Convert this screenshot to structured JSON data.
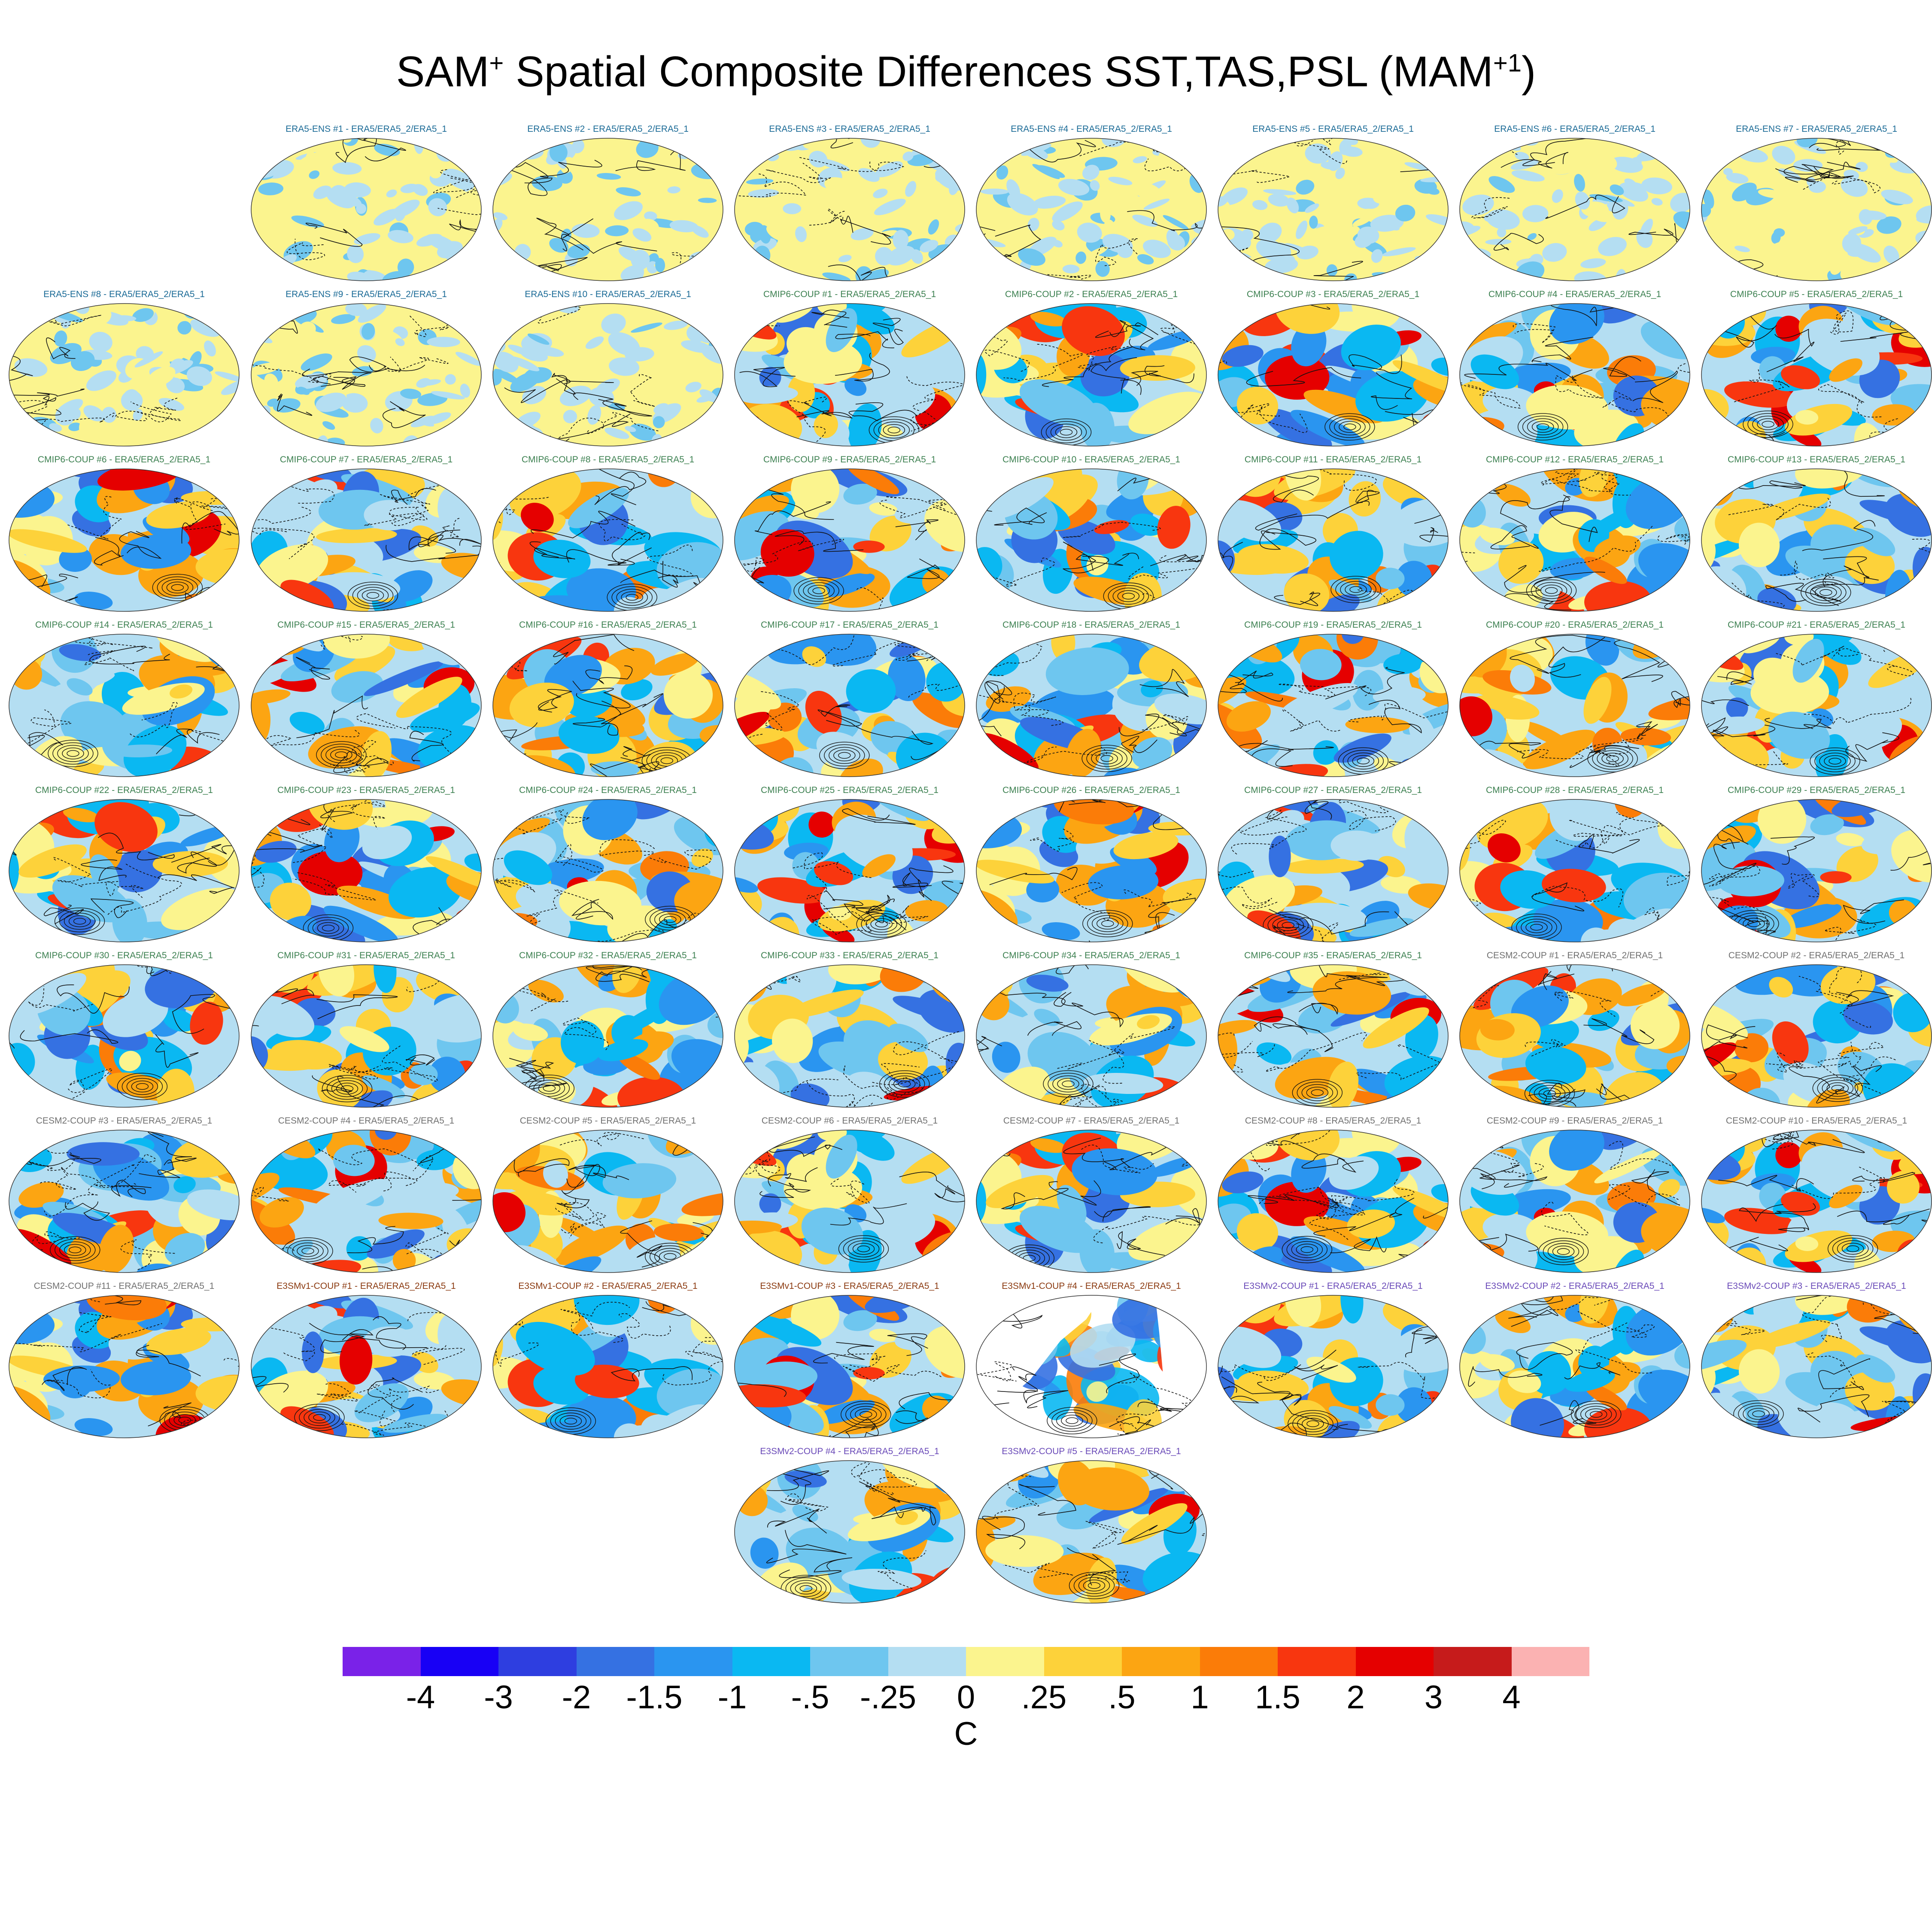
{
  "figure": {
    "title_main": "SAM",
    "title_sup1": "+",
    "title_mid": " Spatial Composite Differences SST,TAS,PSL (MAM",
    "title_sup2": "+1",
    "title_end": ")"
  },
  "chart_data": {
    "type": "heatmap",
    "title": "SAM+ Spatial Composite Differences SST,TAS,PSL (MAM+1)",
    "projection": "Robinson global maps, filled contours with line contours overlaid",
    "panels": [
      {
        "label": "ERA5-ENS   #1 - ERA5/ERA5_2/ERA5_1",
        "group": "ERA5-ENS"
      },
      {
        "label": "ERA5-ENS   #2 - ERA5/ERA5_2/ERA5_1",
        "group": "ERA5-ENS"
      },
      {
        "label": "ERA5-ENS   #3 - ERA5/ERA5_2/ERA5_1",
        "group": "ERA5-ENS"
      },
      {
        "label": "ERA5-ENS   #4 - ERA5/ERA5_2/ERA5_1",
        "group": "ERA5-ENS"
      },
      {
        "label": "ERA5-ENS   #5 - ERA5/ERA5_2/ERA5_1",
        "group": "ERA5-ENS"
      },
      {
        "label": "ERA5-ENS   #6 - ERA5/ERA5_2/ERA5_1",
        "group": "ERA5-ENS"
      },
      {
        "label": "ERA5-ENS   #7 - ERA5/ERA5_2/ERA5_1",
        "group": "ERA5-ENS"
      },
      {
        "label": "ERA5-ENS   #8 - ERA5/ERA5_2/ERA5_1",
        "group": "ERA5-ENS"
      },
      {
        "label": "ERA5-ENS   #9 - ERA5/ERA5_2/ERA5_1",
        "group": "ERA5-ENS"
      },
      {
        "label": "ERA5-ENS   #10 - ERA5/ERA5_2/ERA5_1",
        "group": "ERA5-ENS"
      },
      {
        "label": "CMIP6-COUP  #1 - ERA5/ERA5_2/ERA5_1",
        "group": "CMIP6-COUP"
      },
      {
        "label": "CMIP6-COUP  #2 - ERA5/ERA5_2/ERA5_1",
        "group": "CMIP6-COUP"
      },
      {
        "label": "CMIP6-COUP  #3 - ERA5/ERA5_2/ERA5_1",
        "group": "CMIP6-COUP"
      },
      {
        "label": "CMIP6-COUP  #4 - ERA5/ERA5_2/ERA5_1",
        "group": "CMIP6-COUP"
      },
      {
        "label": "CMIP6-COUP  #5 - ERA5/ERA5_2/ERA5_1",
        "group": "CMIP6-COUP"
      },
      {
        "label": "CMIP6-COUP  #6 - ERA5/ERA5_2/ERA5_1",
        "group": "CMIP6-COUP"
      },
      {
        "label": "CMIP6-COUP  #7 - ERA5/ERA5_2/ERA5_1",
        "group": "CMIP6-COUP"
      },
      {
        "label": "CMIP6-COUP  #8 - ERA5/ERA5_2/ERA5_1",
        "group": "CMIP6-COUP"
      },
      {
        "label": "CMIP6-COUP  #9 - ERA5/ERA5_2/ERA5_1",
        "group": "CMIP6-COUP"
      },
      {
        "label": "CMIP6-COUP  #10 - ERA5/ERA5_2/ERA5_1",
        "group": "CMIP6-COUP"
      },
      {
        "label": "CMIP6-COUP  #11 - ERA5/ERA5_2/ERA5_1",
        "group": "CMIP6-COUP"
      },
      {
        "label": "CMIP6-COUP  #12 - ERA5/ERA5_2/ERA5_1",
        "group": "CMIP6-COUP"
      },
      {
        "label": "CMIP6-COUP  #13 - ERA5/ERA5_2/ERA5_1",
        "group": "CMIP6-COUP"
      },
      {
        "label": "CMIP6-COUP  #14 - ERA5/ERA5_2/ERA5_1",
        "group": "CMIP6-COUP"
      },
      {
        "label": "CMIP6-COUP  #15 - ERA5/ERA5_2/ERA5_1",
        "group": "CMIP6-COUP"
      },
      {
        "label": "CMIP6-COUP  #16 - ERA5/ERA5_2/ERA5_1",
        "group": "CMIP6-COUP"
      },
      {
        "label": "CMIP6-COUP  #17 - ERA5/ERA5_2/ERA5_1",
        "group": "CMIP6-COUP"
      },
      {
        "label": "CMIP6-COUP  #18 - ERA5/ERA5_2/ERA5_1",
        "group": "CMIP6-COUP"
      },
      {
        "label": "CMIP6-COUP  #19 - ERA5/ERA5_2/ERA5_1",
        "group": "CMIP6-COUP"
      },
      {
        "label": "CMIP6-COUP  #20 - ERA5/ERA5_2/ERA5_1",
        "group": "CMIP6-COUP"
      },
      {
        "label": "CMIP6-COUP  #21 - ERA5/ERA5_2/ERA5_1",
        "group": "CMIP6-COUP"
      },
      {
        "label": "CMIP6-COUP  #22 - ERA5/ERA5_2/ERA5_1",
        "group": "CMIP6-COUP"
      },
      {
        "label": "CMIP6-COUP  #23 - ERA5/ERA5_2/ERA5_1",
        "group": "CMIP6-COUP"
      },
      {
        "label": "CMIP6-COUP  #24 - ERA5/ERA5_2/ERA5_1",
        "group": "CMIP6-COUP"
      },
      {
        "label": "CMIP6-COUP  #25 - ERA5/ERA5_2/ERA5_1",
        "group": "CMIP6-COUP"
      },
      {
        "label": "CMIP6-COUP  #26 - ERA5/ERA5_2/ERA5_1",
        "group": "CMIP6-COUP"
      },
      {
        "label": "CMIP6-COUP  #27 - ERA5/ERA5_2/ERA5_1",
        "group": "CMIP6-COUP"
      },
      {
        "label": "CMIP6-COUP  #28 - ERA5/ERA5_2/ERA5_1",
        "group": "CMIP6-COUP"
      },
      {
        "label": "CMIP6-COUP  #29 - ERA5/ERA5_2/ERA5_1",
        "group": "CMIP6-COUP"
      },
      {
        "label": "CMIP6-COUP  #30 - ERA5/ERA5_2/ERA5_1",
        "group": "CMIP6-COUP"
      },
      {
        "label": "CMIP6-COUP  #31 - ERA5/ERA5_2/ERA5_1",
        "group": "CMIP6-COUP"
      },
      {
        "label": "CMIP6-COUP  #32 - ERA5/ERA5_2/ERA5_1",
        "group": "CMIP6-COUP"
      },
      {
        "label": "CMIP6-COUP  #33 - ERA5/ERA5_2/ERA5_1",
        "group": "CMIP6-COUP"
      },
      {
        "label": "CMIP6-COUP  #34 - ERA5/ERA5_2/ERA5_1",
        "group": "CMIP6-COUP"
      },
      {
        "label": "CMIP6-COUP  #35 - ERA5/ERA5_2/ERA5_1",
        "group": "CMIP6-COUP"
      },
      {
        "label": "CESM2-COUP  #1 - ERA5/ERA5_2/ERA5_1",
        "group": "CESM2-COUP"
      },
      {
        "label": "CESM2-COUP  #2 - ERA5/ERA5_2/ERA5_1",
        "group": "CESM2-COUP"
      },
      {
        "label": "CESM2-COUP  #3 - ERA5/ERA5_2/ERA5_1",
        "group": "CESM2-COUP"
      },
      {
        "label": "CESM2-COUP  #4 - ERA5/ERA5_2/ERA5_1",
        "group": "CESM2-COUP"
      },
      {
        "label": "CESM2-COUP  #5 - ERA5/ERA5_2/ERA5_1",
        "group": "CESM2-COUP"
      },
      {
        "label": "CESM2-COUP  #6 - ERA5/ERA5_2/ERA5_1",
        "group": "CESM2-COUP"
      },
      {
        "label": "CESM2-COUP  #7 - ERA5/ERA5_2/ERA5_1",
        "group": "CESM2-COUP"
      },
      {
        "label": "CESM2-COUP  #8 - ERA5/ERA5_2/ERA5_1",
        "group": "CESM2-COUP"
      },
      {
        "label": "CESM2-COUP  #9 - ERA5/ERA5_2/ERA5_1",
        "group": "CESM2-COUP"
      },
      {
        "label": "CESM2-COUP  #10 - ERA5/ERA5_2/ERA5_1",
        "group": "CESM2-COUP"
      },
      {
        "label": "CESM2-COUP  #11 - ERA5/ERA5_2/ERA5_1",
        "group": "CESM2-COUP"
      },
      {
        "label": "E3SMv1-COUP  #1 - ERA5/ERA5_2/ERA5_1",
        "group": "E3SMv1-COUP"
      },
      {
        "label": "E3SMv1-COUP  #2 - ERA5/ERA5_2/ERA5_1",
        "group": "E3SMv1-COUP"
      },
      {
        "label": "E3SMv1-COUP  #3 - ERA5/ERA5_2/ERA5_1",
        "group": "E3SMv1-COUP"
      },
      {
        "label": "E3SMv1-COUP  #4 - ERA5/ERA5_2/ERA5_1",
        "group": "E3SMv1-COUP",
        "land_masked": true
      },
      {
        "label": "E3SMv2-COUP  #1 - ERA5/ERA5_2/ERA5_1",
        "group": "E3SMv2-COUP"
      },
      {
        "label": "E3SMv2-COUP  #2 - ERA5/ERA5_2/ERA5_1",
        "group": "E3SMv2-COUP"
      },
      {
        "label": "E3SMv2-COUP  #3 - ERA5/ERA5_2/ERA5_1",
        "group": "E3SMv2-COUP"
      },
      {
        "label": "E3SMv2-COUP  #4 - ERA5/ERA5_2/ERA5_1",
        "group": "E3SMv2-COUP"
      },
      {
        "label": "E3SMv2-COUP  #5 - ERA5/ERA5_2/ERA5_1",
        "group": "E3SMv2-COUP"
      }
    ],
    "group_label_colors": {
      "ERA5-ENS": "#1a6a96",
      "CMIP6-COUP": "#3c8050",
      "CESM2-COUP": "#707070",
      "E3SMv1-COUP": "#8b3a10",
      "E3SMv2-COUP": "#6a4ab8"
    },
    "colorbar": {
      "tick_labels": [
        "-4",
        "-3",
        "-2",
        "-1.5",
        "-1",
        "-.5",
        "-.25",
        "0",
        ".25",
        ".5",
        "1",
        "1.5",
        "2",
        "3",
        "4"
      ],
      "colors": [
        "#7a22e8",
        "#1800f5",
        "#2e3ee0",
        "#3571e2",
        "#2a95f0",
        "#0ab8f2",
        "#6ec6ef",
        "#b4def2",
        "#fbf48e",
        "#fdd23a",
        "#fca512",
        "#fb7c08",
        "#f8360f",
        "#e50000",
        "#c61b1b",
        "#fbb2b2"
      ],
      "units": "C"
    }
  }
}
